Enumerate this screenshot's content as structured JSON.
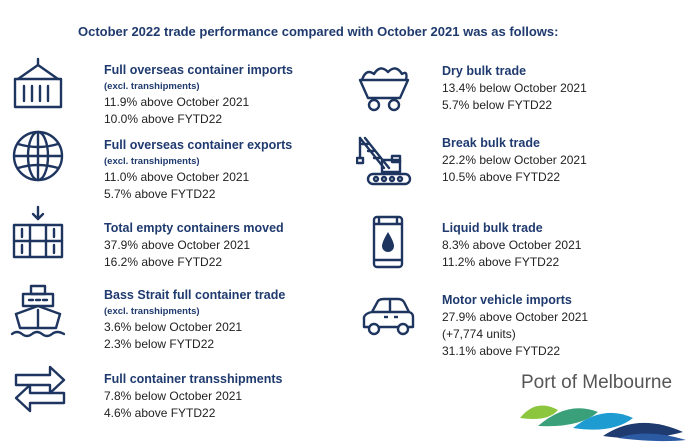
{
  "heading": "October 2022 trade performance compared with October 2021 was as follows:",
  "left": [
    {
      "icon": "container-icon",
      "title": "Full overseas container imports",
      "sub": "(excl. transhipments)",
      "lines": [
        "11.9% above October 2021",
        "10.0% above FYTD22"
      ]
    },
    {
      "icon": "globe-icon",
      "title": "Full overseas container exports",
      "sub": "(excl. transhipments)",
      "lines": [
        "11.0% above October 2021",
        "5.7% above FYTD22"
      ]
    },
    {
      "icon": "stacked-containers-icon",
      "title": "Total empty containers moved",
      "sub": "",
      "lines": [
        "37.9% above October 2021",
        "16.2% above FYTD22"
      ]
    },
    {
      "icon": "ship-icon",
      "title": "Bass Strait full container trade",
      "sub": "(excl. transhipments)",
      "lines": [
        "3.6% below October 2021",
        "2.3% below FYTD22"
      ]
    },
    {
      "icon": "transfer-arrows-icon",
      "title": "Full container transshipments",
      "sub": "",
      "lines": [
        "7.8% below October 2021",
        "4.6% above FYTD22"
      ]
    }
  ],
  "right": [
    {
      "icon": "mine-cart-icon",
      "title": "Dry bulk trade",
      "lines": [
        "13.4% below October 2021",
        "5.7% below FYTD22"
      ]
    },
    {
      "icon": "crane-icon",
      "title": "Break bulk trade",
      "lines": [
        "22.2% below October 2021",
        "10.5% above FYTD22"
      ]
    },
    {
      "icon": "oil-drum-icon",
      "title": "Liquid bulk trade",
      "lines": [
        "8.3% above October 2021",
        "11.2% above FYTD22"
      ]
    },
    {
      "icon": "car-icon",
      "title": "Motor vehicle imports",
      "lines": [
        "27.9% above October 2021",
        "(+7,774 units)",
        "31.1% above FYTD22"
      ]
    }
  ],
  "brand": {
    "name": "Port of Melbourne"
  },
  "colors": {
    "navy": "#1f3a6e",
    "icon": "#1e3560",
    "text": "#222222"
  }
}
